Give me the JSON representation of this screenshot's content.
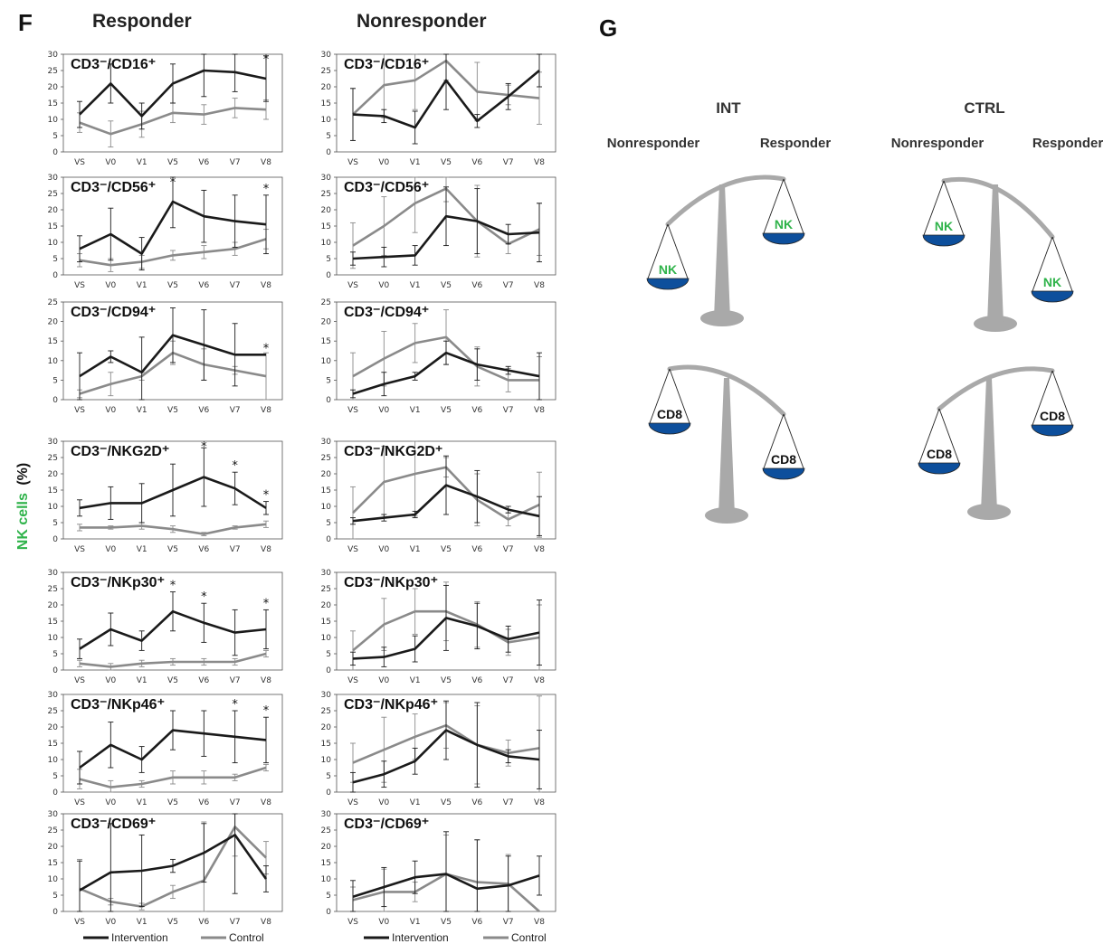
{
  "panel_f": {
    "letter": "F",
    "responder_title": "Responder",
    "nonresponder_title": "Nonresponder",
    "y_axis_label_green": "NK cells",
    "y_axis_label_black": "(%)"
  },
  "legend": {
    "intervention": "Intervention",
    "control": "Control"
  },
  "colors": {
    "intervention": "#1a1a1a",
    "control": "#8a8a8a",
    "nk_green": "#2fb34a",
    "pan_blue": "#0d4f9c",
    "scale_gray": "#a9a9a9"
  },
  "chart_data": [
    {
      "type": "line",
      "group": "Responder",
      "title": "CD3⁻/CD16⁺",
      "categories": [
        "VS",
        "V0",
        "V1",
        "V5",
        "V6",
        "V7",
        "V8"
      ],
      "ylim": [
        0,
        30
      ],
      "yticks": [
        0,
        5,
        10,
        15,
        20,
        25,
        30
      ],
      "series": [
        {
          "name": "Intervention",
          "values": [
            11.5,
            21,
            11,
            21,
            25,
            24.5,
            22.5
          ],
          "err": [
            4,
            6,
            4,
            6,
            8,
            6,
            7
          ]
        },
        {
          "name": "Control",
          "values": [
            9,
            5.5,
            8.5,
            12,
            11.5,
            13.5,
            13
          ],
          "err": [
            3,
            4,
            4,
            3,
            3,
            3,
            3
          ]
        }
      ],
      "significance": [
        "",
        "",
        "",
        "",
        "",
        "",
        "*"
      ]
    },
    {
      "type": "line",
      "group": "Nonresponder",
      "title": "CD3⁻/CD16⁺",
      "categories": [
        "VS",
        "V0",
        "V1",
        "V5",
        "V6",
        "V7",
        "V8"
      ],
      "ylim": [
        0,
        30
      ],
      "yticks": [
        0,
        5,
        10,
        15,
        20,
        25,
        30
      ],
      "series": [
        {
          "name": "Intervention",
          "values": [
            11.5,
            11,
            7.5,
            22,
            9.5,
            17,
            25
          ],
          "err": [
            8,
            2,
            5,
            9,
            2,
            4,
            5
          ]
        },
        {
          "name": "Control",
          "values": [
            11.5,
            20.5,
            22,
            28,
            18.5,
            17.5,
            16.5
          ],
          "err": [
            8,
            10,
            9,
            6,
            9,
            3,
            8
          ]
        }
      ],
      "significance": [
        "",
        "",
        "",
        "",
        "",
        "",
        ""
      ]
    },
    {
      "type": "line",
      "group": "Responder",
      "title": "CD3⁻/CD56⁺",
      "categories": [
        "VS",
        "V0",
        "V1",
        "V5",
        "V6",
        "V7",
        "V8"
      ],
      "ylim": [
        0,
        30
      ],
      "yticks": [
        0,
        5,
        10,
        15,
        20,
        25,
        30
      ],
      "series": [
        {
          "name": "Intervention",
          "values": [
            8,
            12.5,
            6.5,
            22.5,
            18,
            16.5,
            15.5
          ],
          "err": [
            4,
            8,
            5,
            8,
            8,
            8,
            9
          ]
        },
        {
          "name": "Control",
          "values": [
            4.5,
            3,
            4,
            6,
            7,
            8,
            11
          ],
          "err": [
            2,
            2,
            2,
            1.5,
            2,
            2,
            3
          ]
        }
      ],
      "significance": [
        "",
        "",
        "",
        "*",
        "",
        "",
        "*"
      ]
    },
    {
      "type": "line",
      "group": "Nonresponder",
      "title": "CD3⁻/CD56⁺",
      "categories": [
        "VS",
        "V0",
        "V1",
        "V5",
        "V6",
        "V7",
        "V8"
      ],
      "ylim": [
        0,
        30
      ],
      "yticks": [
        0,
        5,
        10,
        15,
        20,
        25,
        30
      ],
      "series": [
        {
          "name": "Intervention",
          "values": [
            5,
            5.5,
            6,
            18,
            16.5,
            12.5,
            13
          ],
          "err": [
            2,
            3,
            3,
            9,
            10,
            3,
            9
          ]
        },
        {
          "name": "Control",
          "values": [
            9,
            15,
            22,
            26.5,
            16.5,
            9.5,
            14
          ],
          "err": [
            7,
            9,
            9,
            4,
            11,
            3,
            8
          ]
        }
      ],
      "significance": [
        "",
        "",
        "",
        "",
        "",
        "",
        ""
      ]
    },
    {
      "type": "line",
      "group": "Responder",
      "title": "CD3⁻/CD94⁺",
      "categories": [
        "VS",
        "V0",
        "V1",
        "V5",
        "V6",
        "V7",
        "V8"
      ],
      "ylim": [
        0,
        25
      ],
      "yticks": [
        0,
        5,
        10,
        15,
        20,
        25
      ],
      "series": [
        {
          "name": "Intervention",
          "values": [
            6,
            11,
            7,
            16.5,
            14,
            11.5,
            11.5
          ],
          "err": [
            6,
            1.5,
            9,
            7,
            9,
            8,
            0
          ]
        },
        {
          "name": "Control",
          "values": [
            1.5,
            4,
            6,
            12,
            9,
            7.5,
            6
          ],
          "err": [
            1,
            3,
            1,
            3,
            4,
            1,
            6
          ]
        }
      ],
      "significance": [
        "",
        "",
        "",
        "",
        "",
        "",
        "*"
      ]
    },
    {
      "type": "line",
      "group": "Nonresponder",
      "title": "CD3⁻/CD94⁺",
      "categories": [
        "VS",
        "V0",
        "V1",
        "V5",
        "V6",
        "V7",
        "V8"
      ],
      "ylim": [
        0,
        25
      ],
      "yticks": [
        0,
        5,
        10,
        15,
        20,
        25
      ],
      "series": [
        {
          "name": "Intervention",
          "values": [
            1.5,
            4,
            6,
            12,
            9,
            7.5,
            6
          ],
          "err": [
            1,
            3,
            1,
            3,
            4,
            1,
            6
          ]
        },
        {
          "name": "Control",
          "values": [
            6,
            10.5,
            14.5,
            16,
            8.5,
            5,
            5
          ],
          "err": [
            6,
            7,
            5,
            7,
            5,
            3,
            6
          ]
        }
      ],
      "significance": [
        "",
        "",
        "",
        "",
        "",
        "",
        ""
      ]
    },
    {
      "type": "line",
      "group": "Responder",
      "title": "CD3⁻/NKG2D⁺",
      "categories": [
        "VS",
        "V0",
        "V1",
        "V5",
        "V6",
        "V7",
        "V8"
      ],
      "ylim": [
        0,
        30
      ],
      "yticks": [
        0,
        5,
        10,
        15,
        20,
        25,
        30
      ],
      "series": [
        {
          "name": "Intervention",
          "values": [
            9.5,
            11,
            11,
            15,
            19,
            15.5,
            9.5
          ],
          "err": [
            2.5,
            5,
            6,
            8,
            9,
            5,
            2
          ]
        },
        {
          "name": "Control",
          "values": [
            3.5,
            3.5,
            4,
            3,
            1.5,
            3.5,
            4.5
          ],
          "err": [
            1,
            0.5,
            1,
            1,
            0.5,
            0.5,
            1
          ]
        }
      ],
      "significance": [
        "",
        "",
        "",
        "",
        "*",
        "*",
        "*"
      ]
    },
    {
      "type": "line",
      "group": "Nonresponder",
      "title": "CD3⁻/NKG2D⁺",
      "categories": [
        "VS",
        "V0",
        "V1",
        "V5",
        "V6",
        "V7",
        "V8"
      ],
      "ylim": [
        0,
        30
      ],
      "yticks": [
        0,
        5,
        10,
        15,
        20,
        25,
        30
      ],
      "series": [
        {
          "name": "Intervention",
          "values": [
            5.5,
            6.5,
            7.5,
            16.5,
            13,
            9,
            7
          ],
          "err": [
            1,
            1,
            1,
            9,
            8,
            1,
            6
          ]
        },
        {
          "name": "Control",
          "values": [
            8,
            17.5,
            20,
            22,
            12,
            6,
            10.5
          ],
          "err": [
            8,
            11,
            13,
            3,
            8,
            2,
            10
          ]
        }
      ],
      "significance": [
        "",
        "",
        "",
        "",
        "",
        "",
        ""
      ]
    },
    {
      "type": "line",
      "group": "Responder",
      "title": "CD3⁻/NKp30⁺",
      "categories": [
        "VS",
        "V0",
        "V1",
        "V5",
        "V6",
        "V7",
        "V8"
      ],
      "ylim": [
        0,
        30
      ],
      "yticks": [
        0,
        5,
        10,
        15,
        20,
        25,
        30
      ],
      "series": [
        {
          "name": "Intervention",
          "values": [
            6.5,
            12.5,
            9,
            18,
            14.5,
            11.5,
            12.5
          ],
          "err": [
            3,
            5,
            3,
            6,
            6,
            7,
            6
          ]
        },
        {
          "name": "Control",
          "values": [
            2,
            1,
            2,
            2.5,
            2.5,
            2.5,
            5
          ],
          "err": [
            1,
            1,
            1,
            1,
            1,
            1,
            1
          ]
        }
      ],
      "significance": [
        "",
        "",
        "",
        "*",
        "*",
        "",
        "*"
      ]
    },
    {
      "type": "line",
      "group": "Nonresponder",
      "title": "CD3⁻/NKp30⁺",
      "categories": [
        "VS",
        "V0",
        "V1",
        "V5",
        "V6",
        "V7",
        "V8"
      ],
      "ylim": [
        0,
        30
      ],
      "yticks": [
        0,
        5,
        10,
        15,
        20,
        25,
        30
      ],
      "series": [
        {
          "name": "Intervention",
          "values": [
            3.5,
            4,
            6.5,
            16,
            13.5,
            9.5,
            11.5
          ],
          "err": [
            2,
            3,
            4,
            10,
            7,
            4,
            10
          ]
        },
        {
          "name": "Control",
          "values": [
            6,
            14,
            18,
            18,
            14,
            8.5,
            10
          ],
          "err": [
            6,
            8,
            7,
            9,
            7,
            4,
            10
          ]
        }
      ],
      "significance": [
        "",
        "",
        "",
        "",
        "",
        "",
        ""
      ]
    },
    {
      "type": "line",
      "group": "Responder",
      "title": "CD3⁻/NKp46⁺",
      "categories": [
        "VS",
        "V0",
        "V1",
        "V5",
        "V6",
        "V7",
        "V8"
      ],
      "ylim": [
        0,
        30
      ],
      "yticks": [
        0,
        5,
        10,
        15,
        20,
        25,
        30
      ],
      "series": [
        {
          "name": "Intervention",
          "values": [
            7.5,
            14.5,
            10,
            19,
            18,
            17,
            16
          ],
          "err": [
            5,
            7,
            4,
            6,
            7,
            8,
            7
          ]
        },
        {
          "name": "Control",
          "values": [
            4,
            1.5,
            2.5,
            4.5,
            4.5,
            4.5,
            7.5
          ],
          "err": [
            3,
            2,
            1,
            2,
            2,
            1,
            1
          ]
        }
      ],
      "significance": [
        "",
        "",
        "",
        "",
        "",
        "*",
        "*"
      ]
    },
    {
      "type": "line",
      "group": "Nonresponder",
      "title": "CD3⁻/NKp46⁺",
      "categories": [
        "VS",
        "V0",
        "V1",
        "V5",
        "V6",
        "V7",
        "V8"
      ],
      "ylim": [
        0,
        30
      ],
      "yticks": [
        0,
        5,
        10,
        15,
        20,
        25,
        30
      ],
      "series": [
        {
          "name": "Intervention",
          "values": [
            3,
            5.5,
            9.5,
            19,
            14.5,
            11,
            10
          ],
          "err": [
            3,
            4,
            4,
            9,
            13,
            2,
            9
          ]
        },
        {
          "name": "Control",
          "values": [
            9,
            13,
            17,
            20.5,
            14.5,
            12,
            13.5
          ],
          "err": [
            6,
            10,
            7,
            7,
            12,
            4,
            16
          ]
        }
      ],
      "significance": [
        "",
        "",
        "",
        "",
        "",
        "",
        ""
      ]
    },
    {
      "type": "line",
      "group": "Responder",
      "title": "CD3⁻/CD69⁺",
      "categories": [
        "VS",
        "V0",
        "V1",
        "V5",
        "V6",
        "V7",
        "V8"
      ],
      "ylim": [
        0,
        30
      ],
      "yticks": [
        0,
        5,
        10,
        15,
        20,
        25,
        30
      ],
      "series": [
        {
          "name": "Intervention",
          "values": [
            6.5,
            12,
            12.5,
            14,
            18,
            23.5,
            10
          ],
          "err": [
            9,
            15,
            11,
            2,
            9,
            18,
            4
          ]
        },
        {
          "name": "Control",
          "values": [
            7,
            3,
            1.5,
            6,
            9.5,
            26,
            16.5
          ],
          "err": [
            9,
            1,
            1,
            2,
            18,
            9,
            5
          ]
        }
      ],
      "significance": [
        "",
        "",
        "",
        "",
        "",
        "",
        ""
      ]
    },
    {
      "type": "line",
      "group": "Nonresponder",
      "title": "CD3⁻/CD69⁺",
      "categories": [
        "VS",
        "V0",
        "V1",
        "V5",
        "V6",
        "V7",
        "V8"
      ],
      "ylim": [
        0,
        30
      ],
      "yticks": [
        0,
        5,
        10,
        15,
        20,
        25,
        30
      ],
      "series": [
        {
          "name": "Intervention",
          "values": [
            4.5,
            7.5,
            10.5,
            11.5,
            7,
            8,
            11
          ],
          "err": [
            5,
            6,
            5,
            13,
            15,
            9,
            6
          ]
        },
        {
          "name": "Control",
          "values": [
            3.5,
            6,
            6,
            11.5,
            9,
            8.5,
            0
          ],
          "err": [
            4,
            7,
            3,
            12,
            13,
            9,
            0
          ]
        }
      ],
      "significance": [
        "",
        "",
        "",
        "",
        "",
        "",
        ""
      ]
    }
  ],
  "panel_g": {
    "letter": "G",
    "int_heading": "INT",
    "ctrl_heading": "CTRL",
    "int_left": "Nonresponder",
    "int_right": "Responder",
    "ctrl_left": "Nonresponder",
    "ctrl_right": "Responder",
    "nk_label": "NK",
    "cd8_label": "CD8",
    "balances": [
      {
        "group": "INT",
        "marker": "NK",
        "heavier": "Nonresponder"
      },
      {
        "group": "CTRL",
        "marker": "NK",
        "heavier": "Responder"
      },
      {
        "group": "INT",
        "marker": "CD8",
        "heavier": "Responder"
      },
      {
        "group": "CTRL",
        "marker": "CD8",
        "heavier": "Nonresponder"
      }
    ]
  }
}
